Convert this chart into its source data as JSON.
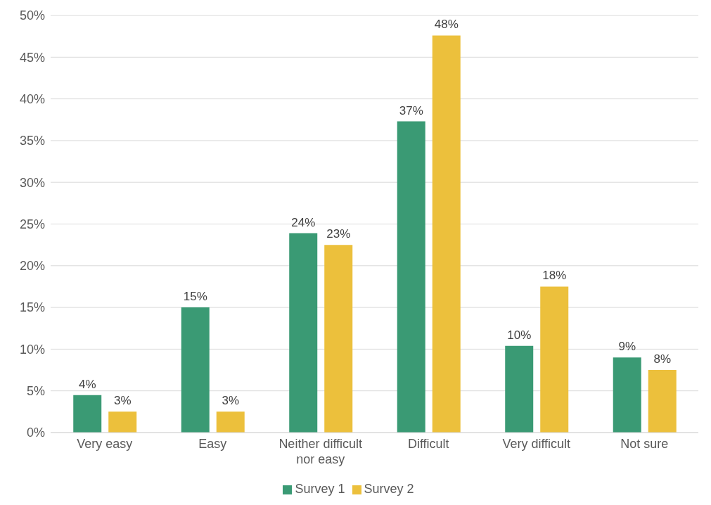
{
  "chart_data": {
    "type": "bar",
    "categories": [
      "Very easy",
      "Easy",
      "Neither difficult nor easy",
      "Difficult",
      "Very difficult",
      "Not sure"
    ],
    "series": [
      {
        "name": "Survey 1",
        "color": "#3a9a74",
        "values": [
          4.5,
          15,
          23.9,
          37.3,
          10.4,
          9
        ],
        "value_labels": [
          "4%",
          "15%",
          "24%",
          "37%",
          "10%",
          "9%"
        ]
      },
      {
        "name": "Survey 2",
        "color": "#ecc03c",
        "values": [
          2.5,
          2.5,
          22.5,
          47.6,
          17.5,
          7.5
        ],
        "value_labels": [
          "3%",
          "3%",
          "23%",
          "48%",
          "18%",
          "8%"
        ]
      }
    ],
    "ylim": [
      0,
      50
    ],
    "yticks": [
      {
        "value": 0,
        "label": "0%"
      },
      {
        "value": 5,
        "label": "5%"
      },
      {
        "value": 10,
        "label": "10%"
      },
      {
        "value": 15,
        "label": "15%"
      },
      {
        "value": 20,
        "label": "20%"
      },
      {
        "value": 25,
        "label": "25%"
      },
      {
        "value": 30,
        "label": "30%"
      },
      {
        "value": 35,
        "label": "35%"
      },
      {
        "value": 40,
        "label": "40%"
      },
      {
        "value": 45,
        "label": "45%"
      },
      {
        "value": 50,
        "label": "50%"
      }
    ],
    "grid": "y",
    "legend": "bottom"
  }
}
